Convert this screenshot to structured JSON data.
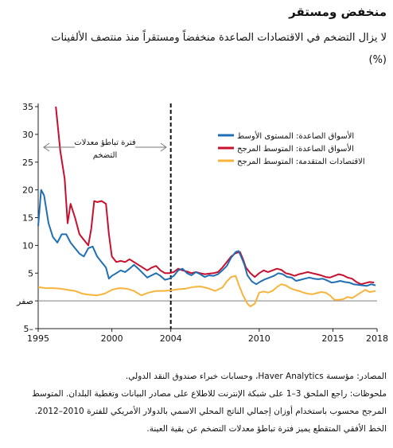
{
  "title": "منخفض ومستقر",
  "subtitle": "لا يزال التضخم في الاقتصادات الصاعدة منخفضاً ومستقراً منذ منتصف الألفينات",
  "unit": "(%)",
  "annotation": "فترة تباطؤ معدلات التضخم",
  "notes": {
    "source": "المصادر: مؤسسة Haver Analytics، وحسابات خبراء صندوق النقد الدولي.",
    "note1": "ملحوظات: راجع الملحق 3–1 على شبكة الإنترنت للاطلاع على مصادر البيانات وتغطية البلدان. المتوسط",
    "note2": "المرجح محسوب باستخدام أوزان إجمالي الناتج المحلي الاسمي بالدولار الأمريكي للفترة 2010–2012.",
    "note3": "الخط الأفقي المتقطع يميز فترة تباطؤ معدلات التضخم عن بقية العينة."
  },
  "chart_data": {
    "type": "line",
    "xlim": [
      1995,
      2018
    ],
    "ylim": [
      -5,
      35
    ],
    "y_ticks": [
      -5,
      0,
      5,
      10,
      15,
      20,
      25,
      30,
      35
    ],
    "y_tick_labels": [
      "5–",
      "صفر",
      "5",
      "10",
      "15",
      "20",
      "25",
      "30",
      "35"
    ],
    "x_ticks": [
      1995,
      2000,
      2004,
      2010,
      2015,
      2018
    ],
    "x_tick_labels": [
      "1995",
      "2000",
      "2004",
      "2010",
      "2015",
      "2018"
    ],
    "vertical_marker": 2004,
    "zero_line": 0,
    "legend_position": "top-right",
    "series": [
      {
        "name": "الأسواق الصاعدة: المستوى الأوسط",
        "color": "#1f6fb4",
        "points": [
          [
            1995.0,
            13.5
          ],
          [
            1995.2,
            20.0
          ],
          [
            1995.4,
            19.0
          ],
          [
            1995.7,
            14.0
          ],
          [
            1996.0,
            11.5
          ],
          [
            1996.3,
            10.5
          ],
          [
            1996.6,
            12.0
          ],
          [
            1996.9,
            12.0
          ],
          [
            1997.2,
            10.5
          ],
          [
            1997.5,
            9.5
          ],
          [
            1997.8,
            8.5
          ],
          [
            1998.1,
            8.0
          ],
          [
            1998.4,
            9.5
          ],
          [
            1998.7,
            9.8
          ],
          [
            1999.0,
            8.0
          ],
          [
            1999.3,
            7.0
          ],
          [
            1999.6,
            6.0
          ],
          [
            1999.8,
            4.0
          ],
          [
            2000.0,
            4.5
          ],
          [
            2000.3,
            5.0
          ],
          [
            2000.6,
            5.5
          ],
          [
            2000.9,
            5.2
          ],
          [
            2001.2,
            5.8
          ],
          [
            2001.5,
            6.5
          ],
          [
            2001.8,
            5.8
          ],
          [
            2002.1,
            5.0
          ],
          [
            2002.4,
            4.2
          ],
          [
            2002.7,
            4.6
          ],
          [
            2003.0,
            5.0
          ],
          [
            2003.3,
            4.5
          ],
          [
            2003.6,
            3.8
          ],
          [
            2003.9,
            4.0
          ],
          [
            2004.2,
            4.5
          ],
          [
            2004.5,
            5.5
          ],
          [
            2004.8,
            5.8
          ],
          [
            2005.1,
            5.0
          ],
          [
            2005.4,
            4.6
          ],
          [
            2005.7,
            5.2
          ],
          [
            2006.0,
            4.8
          ],
          [
            2006.3,
            4.3
          ],
          [
            2006.6,
            4.6
          ],
          [
            2006.9,
            4.5
          ],
          [
            2007.2,
            4.8
          ],
          [
            2007.5,
            5.5
          ],
          [
            2007.8,
            6.3
          ],
          [
            2008.1,
            7.8
          ],
          [
            2008.4,
            8.8
          ],
          [
            2008.6,
            9.0
          ],
          [
            2008.8,
            7.8
          ],
          [
            2009.0,
            6.5
          ],
          [
            2009.2,
            4.6
          ],
          [
            2009.5,
            3.5
          ],
          [
            2009.8,
            3.0
          ],
          [
            2010.1,
            3.5
          ],
          [
            2010.4,
            3.9
          ],
          [
            2010.7,
            4.2
          ],
          [
            2011.0,
            4.5
          ],
          [
            2011.3,
            5.0
          ],
          [
            2011.6,
            4.8
          ],
          [
            2011.9,
            4.3
          ],
          [
            2012.2,
            4.2
          ],
          [
            2012.5,
            3.6
          ],
          [
            2012.8,
            3.8
          ],
          [
            2013.1,
            4.0
          ],
          [
            2013.4,
            4.2
          ],
          [
            2013.7,
            4.0
          ],
          [
            2014.0,
            3.9
          ],
          [
            2014.3,
            4.0
          ],
          [
            2014.6,
            3.7
          ],
          [
            2014.9,
            3.3
          ],
          [
            2015.2,
            3.4
          ],
          [
            2015.5,
            3.6
          ],
          [
            2015.8,
            3.4
          ],
          [
            2016.1,
            3.3
          ],
          [
            2016.4,
            3.0
          ],
          [
            2016.7,
            2.9
          ],
          [
            2017.0,
            2.8
          ],
          [
            2017.3,
            2.7
          ],
          [
            2017.6,
            3.0
          ],
          [
            2017.9,
            2.8
          ]
        ]
      },
      {
        "name": "الأسواق الصاعدة: المتوسط المرجح",
        "color": "#c8102e",
        "points": [
          [
            1996.2,
            35.0
          ],
          [
            1996.5,
            27.0
          ],
          [
            1996.8,
            22.0
          ],
          [
            1997.0,
            14.0
          ],
          [
            1997.2,
            17.5
          ],
          [
            1997.5,
            15.0
          ],
          [
            1997.8,
            12.0
          ],
          [
            1998.1,
            11.0
          ],
          [
            1998.4,
            10.0
          ],
          [
            1998.6,
            13.0
          ],
          [
            1998.8,
            18.0
          ],
          [
            1999.0,
            17.8
          ],
          [
            1999.3,
            18.0
          ],
          [
            1999.6,
            17.5
          ],
          [
            1999.8,
            12.0
          ],
          [
            2000.0,
            8.0
          ],
          [
            2000.3,
            7.0
          ],
          [
            2000.6,
            7.2
          ],
          [
            2000.9,
            7.0
          ],
          [
            2001.2,
            7.5
          ],
          [
            2001.5,
            7.0
          ],
          [
            2001.8,
            6.5
          ],
          [
            2002.1,
            6.0
          ],
          [
            2002.4,
            5.5
          ],
          [
            2002.7,
            6.0
          ],
          [
            2003.0,
            6.3
          ],
          [
            2003.3,
            5.5
          ],
          [
            2003.6,
            5.0
          ],
          [
            2003.9,
            5.0
          ],
          [
            2004.2,
            5.2
          ],
          [
            2004.5,
            5.8
          ],
          [
            2004.8,
            5.5
          ],
          [
            2005.1,
            5.3
          ],
          [
            2005.4,
            5.0
          ],
          [
            2005.7,
            5.2
          ],
          [
            2006.0,
            5.0
          ],
          [
            2006.3,
            4.8
          ],
          [
            2006.6,
            4.9
          ],
          [
            2006.9,
            5.0
          ],
          [
            2007.2,
            5.2
          ],
          [
            2007.5,
            6.0
          ],
          [
            2007.8,
            7.0
          ],
          [
            2008.1,
            8.0
          ],
          [
            2008.4,
            8.6
          ],
          [
            2008.7,
            8.8
          ],
          [
            2008.9,
            7.5
          ],
          [
            2009.1,
            6.0
          ],
          [
            2009.4,
            5.0
          ],
          [
            2009.7,
            4.3
          ],
          [
            2010.0,
            5.0
          ],
          [
            2010.3,
            5.5
          ],
          [
            2010.6,
            5.2
          ],
          [
            2010.9,
            5.5
          ],
          [
            2011.2,
            5.8
          ],
          [
            2011.5,
            5.6
          ],
          [
            2011.8,
            5.0
          ],
          [
            2012.1,
            4.8
          ],
          [
            2012.4,
            4.5
          ],
          [
            2012.7,
            4.8
          ],
          [
            2013.0,
            5.0
          ],
          [
            2013.3,
            5.2
          ],
          [
            2013.6,
            5.0
          ],
          [
            2013.9,
            4.8
          ],
          [
            2014.2,
            4.6
          ],
          [
            2014.5,
            4.3
          ],
          [
            2014.8,
            4.2
          ],
          [
            2015.1,
            4.5
          ],
          [
            2015.4,
            4.8
          ],
          [
            2015.7,
            4.6
          ],
          [
            2016.0,
            4.2
          ],
          [
            2016.3,
            4.0
          ],
          [
            2016.6,
            3.4
          ],
          [
            2016.9,
            3.0
          ],
          [
            2017.2,
            3.2
          ],
          [
            2017.5,
            3.4
          ],
          [
            2017.8,
            3.3
          ]
        ]
      },
      {
        "name": "الاقتصادات المتقدمة: المتوسط المرجح",
        "color": "#f7b43d",
        "points": [
          [
            1995.0,
            2.5
          ],
          [
            1995.5,
            2.3
          ],
          [
            1996.0,
            2.3
          ],
          [
            1996.5,
            2.2
          ],
          [
            1997.0,
            2.0
          ],
          [
            1997.5,
            1.8
          ],
          [
            1998.0,
            1.3
          ],
          [
            1998.5,
            1.1
          ],
          [
            1999.0,
            1.0
          ],
          [
            1999.5,
            1.3
          ],
          [
            2000.0,
            2.0
          ],
          [
            2000.5,
            2.3
          ],
          [
            2001.0,
            2.2
          ],
          [
            2001.5,
            1.8
          ],
          [
            2002.0,
            1.0
          ],
          [
            2002.5,
            1.5
          ],
          [
            2003.0,
            1.8
          ],
          [
            2003.5,
            1.8
          ],
          [
            2004.0,
            1.9
          ],
          [
            2004.5,
            2.1
          ],
          [
            2005.0,
            2.2
          ],
          [
            2005.5,
            2.5
          ],
          [
            2006.0,
            2.6
          ],
          [
            2006.5,
            2.3
          ],
          [
            2007.0,
            1.8
          ],
          [
            2007.5,
            2.4
          ],
          [
            2007.8,
            3.5
          ],
          [
            2008.1,
            4.3
          ],
          [
            2008.4,
            4.5
          ],
          [
            2008.6,
            3.0
          ],
          [
            2008.9,
            1.0
          ],
          [
            2009.2,
            -0.5
          ],
          [
            2009.4,
            -1.0
          ],
          [
            2009.7,
            -0.5
          ],
          [
            2010.0,
            1.5
          ],
          [
            2010.3,
            1.7
          ],
          [
            2010.6,
            1.5
          ],
          [
            2010.9,
            1.8
          ],
          [
            2011.2,
            2.5
          ],
          [
            2011.5,
            3.0
          ],
          [
            2011.8,
            2.8
          ],
          [
            2012.1,
            2.3
          ],
          [
            2012.4,
            2.0
          ],
          [
            2012.7,
            1.8
          ],
          [
            2013.0,
            1.5
          ],
          [
            2013.3,
            1.3
          ],
          [
            2013.6,
            1.2
          ],
          [
            2013.9,
            1.4
          ],
          [
            2014.2,
            1.6
          ],
          [
            2014.5,
            1.5
          ],
          [
            2014.8,
            1.0
          ],
          [
            2015.1,
            0.2
          ],
          [
            2015.4,
            0.2
          ],
          [
            2015.7,
            0.3
          ],
          [
            2016.0,
            0.7
          ],
          [
            2016.3,
            0.5
          ],
          [
            2016.6,
            1.0
          ],
          [
            2016.9,
            1.5
          ],
          [
            2017.2,
            2.0
          ],
          [
            2017.5,
            1.6
          ],
          [
            2017.9,
            1.8
          ]
        ]
      }
    ]
  }
}
